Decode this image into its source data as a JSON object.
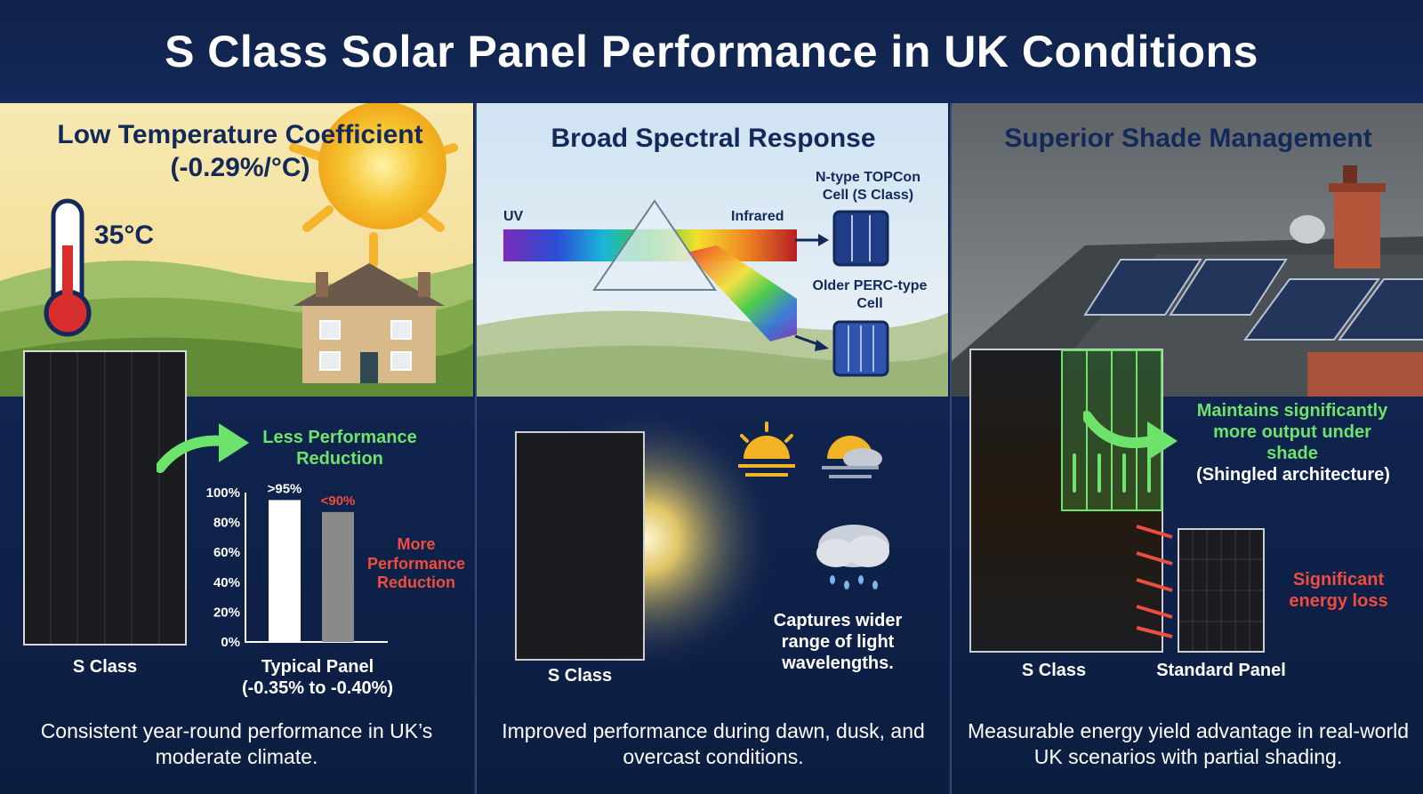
{
  "title": "S Class Solar Panel Performance in UK Conditions",
  "colors": {
    "navy": "#13295a",
    "green": "#6ee36b",
    "red": "#ef4d3f"
  },
  "panel1": {
    "heading": "Low Temperature Coefficient (-0.29%/°C)",
    "temperature": "35°C",
    "less_reduction": "Less Performance Reduction",
    "more_reduction": "More Performance Reduction",
    "s_class_label": "S Class",
    "typical_label_line1": "Typical Panel",
    "typical_label_line2": "(-0.35% to -0.40%)",
    "footer": "Consistent year-round performance in UK’s moderate climate.",
    "chart_data": {
      "type": "bar",
      "categories": [
        "S Class",
        "Typical Panel"
      ],
      "values": [
        95,
        87
      ],
      "value_labels": [
        ">95%",
        "<90%"
      ],
      "yticks": [
        "100%",
        "80%",
        "60%",
        "40%",
        "20%",
        "0%"
      ],
      "ylim": [
        0,
        100
      ]
    }
  },
  "panel2": {
    "heading": "Broad Spectral Response",
    "uv_label": "UV",
    "infrared_label": "Infrared",
    "topcon_label": "N-type TOPCon Cell (S Class)",
    "perc_label": "Older PERC-type Cell",
    "s_class_label": "S Class",
    "captures": "Captures wider range of light wavelengths.",
    "footer": "Improved performance during dawn, dusk, and overcast conditions."
  },
  "panel3": {
    "heading": "Superior Shade Management",
    "maintains_line1": "Maintains significantly more output under shade",
    "maintains_line2": "(Shingled architecture)",
    "energy_loss": "Significant energy loss",
    "s_class_label": "S Class",
    "standard_label": "Standard Panel",
    "footer": "Measurable energy yield advantage in real-world UK scenarios with partial shading."
  }
}
